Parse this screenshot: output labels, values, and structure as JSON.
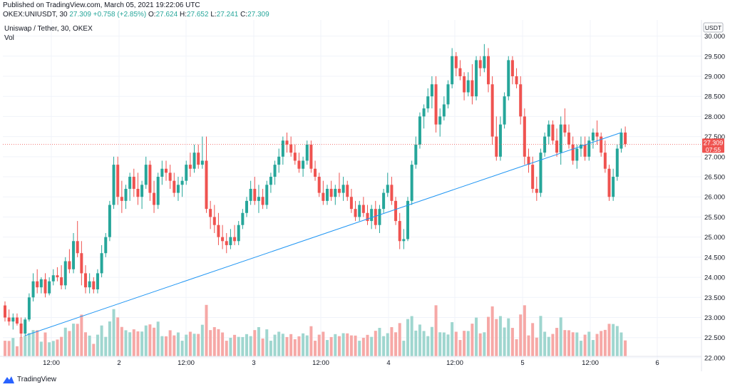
{
  "header": {
    "published": "Published on TradingView.com, March 05, 2021 19:22:06 UTC",
    "symbol_label": "OKEX:UNIUSDT, 30",
    "change": "+0.758 (+2.85%)",
    "o_label": "O:",
    "o_value": "27.624",
    "h_label": "H:",
    "h_value": "27.652",
    "l_label": "L:",
    "l_value": "27.241",
    "c_label": "C:",
    "c_value": "27.309",
    "last": "27.309"
  },
  "legend": {
    "title": "Uniswap / Tether, 30, OKEX",
    "vol": "Vol"
  },
  "footer": {
    "brand": "TradingView"
  },
  "colors": {
    "up": "#26a69a",
    "down": "#ef5350",
    "trendline": "#2196f3",
    "vol_up": "#9fd6cf",
    "vol_down": "#f6a8a6",
    "price_badge": "#ef5350"
  },
  "chart_data": {
    "type": "candlestick",
    "currency_label": "USDT",
    "ylim": [
      21.75,
      30.4
    ],
    "y_ticks": [
      "22.000",
      "22.500",
      "23.000",
      "23.500",
      "24.000",
      "24.500",
      "25.000",
      "25.500",
      "26.000",
      "26.500",
      "27.000",
      "27.500",
      "28.000",
      "28.500",
      "29.000",
      "29.500",
      "30.000"
    ],
    "x_ticks": [
      "12:00",
      "2",
      "12:00",
      "3",
      "12:00",
      "4",
      "12:00",
      "5",
      "12:00",
      "6"
    ],
    "last_price": "27.309",
    "countdown": "07:55",
    "trendline": {
      "from": {
        "x": "Mar 1 ~03:00",
        "y": 22.55
      },
      "to": {
        "x": "Mar 5 ~18:30",
        "y": 27.6
      }
    },
    "candles": [
      [
        23.3,
        23.4,
        22.9,
        23.0
      ],
      [
        23.0,
        23.2,
        22.8,
        22.9
      ],
      [
        22.9,
        23.1,
        22.7,
        23.0
      ],
      [
        23.0,
        23.1,
        22.8,
        22.85
      ],
      [
        22.85,
        23.0,
        22.5,
        22.6
      ],
      [
        22.6,
        23.0,
        22.55,
        22.95
      ],
      [
        22.95,
        23.6,
        22.9,
        23.5
      ],
      [
        23.5,
        24.1,
        23.4,
        23.9
      ],
      [
        23.9,
        24.2,
        23.6,
        23.75
      ],
      [
        23.75,
        24.0,
        23.6,
        23.95
      ],
      [
        23.95,
        24.1,
        23.5,
        23.6
      ],
      [
        23.6,
        24.0,
        23.55,
        23.9
      ],
      [
        23.9,
        24.2,
        23.8,
        24.05
      ],
      [
        24.05,
        24.25,
        23.9,
        24.0
      ],
      [
        24.0,
        24.3,
        23.7,
        23.8
      ],
      [
        23.8,
        24.5,
        23.7,
        24.4
      ],
      [
        24.4,
        24.7,
        24.1,
        24.2
      ],
      [
        24.2,
        25.1,
        24.1,
        24.9
      ],
      [
        24.9,
        25.4,
        24.5,
        24.6
      ],
      [
        24.6,
        24.9,
        23.8,
        24.1
      ],
      [
        24.1,
        24.3,
        23.6,
        23.75
      ],
      [
        23.75,
        24.1,
        23.6,
        23.9
      ],
      [
        23.9,
        24.0,
        23.6,
        23.7
      ],
      [
        23.7,
        24.2,
        23.6,
        24.1
      ],
      [
        24.1,
        24.8,
        24.0,
        24.6
      ],
      [
        24.6,
        25.1,
        24.5,
        25.0
      ],
      [
        25.0,
        25.9,
        24.9,
        25.8
      ],
      [
        25.8,
        27.0,
        25.7,
        26.8
      ],
      [
        26.8,
        27.0,
        25.8,
        26.0
      ],
      [
        26.0,
        26.4,
        25.6,
        25.9
      ],
      [
        25.9,
        26.3,
        25.7,
        26.2
      ],
      [
        26.2,
        26.6,
        25.9,
        26.5
      ],
      [
        26.5,
        26.7,
        26.0,
        26.2
      ],
      [
        26.2,
        26.6,
        25.8,
        26.0
      ],
      [
        26.0,
        26.4,
        25.7,
        26.3
      ],
      [
        26.3,
        27.0,
        26.2,
        26.8
      ],
      [
        26.8,
        26.9,
        25.9,
        26.1
      ],
      [
        26.1,
        26.4,
        25.6,
        25.8
      ],
      [
        25.8,
        26.6,
        25.7,
        26.5
      ],
      [
        26.5,
        26.9,
        26.3,
        26.7
      ],
      [
        26.7,
        26.9,
        26.4,
        26.6
      ],
      [
        26.6,
        26.8,
        26.2,
        26.4
      ],
      [
        26.4,
        26.6,
        26.0,
        26.1
      ],
      [
        26.1,
        26.5,
        25.9,
        26.3
      ],
      [
        26.3,
        26.5,
        26.0,
        26.4
      ],
      [
        26.4,
        26.9,
        26.3,
        26.8
      ],
      [
        26.8,
        27.1,
        26.5,
        26.7
      ],
      [
        26.7,
        27.3,
        26.6,
        27.1
      ],
      [
        27.1,
        27.3,
        26.7,
        26.8
      ],
      [
        26.8,
        27.5,
        26.7,
        26.9
      ],
      [
        26.9,
        27.5,
        25.6,
        25.7
      ],
      [
        25.7,
        25.9,
        25.2,
        25.5
      ],
      [
        25.5,
        25.8,
        25.1,
        25.3
      ],
      [
        25.3,
        25.6,
        24.8,
        25.0
      ],
      [
        25.0,
        25.3,
        24.7,
        24.9
      ],
      [
        24.9,
        25.1,
        24.6,
        24.8
      ],
      [
        24.8,
        25.2,
        24.7,
        25.0
      ],
      [
        25.0,
        25.3,
        24.8,
        24.9
      ],
      [
        24.9,
        25.4,
        24.8,
        25.3
      ],
      [
        25.3,
        25.7,
        25.2,
        25.6
      ],
      [
        25.6,
        26.0,
        25.5,
        25.9
      ],
      [
        25.9,
        26.4,
        25.8,
        26.2
      ],
      [
        26.2,
        26.5,
        25.8,
        25.9
      ],
      [
        25.9,
        26.3,
        25.6,
        26.0
      ],
      [
        26.0,
        26.2,
        25.7,
        25.8
      ],
      [
        25.8,
        26.4,
        25.7,
        26.3
      ],
      [
        26.3,
        26.6,
        26.1,
        26.5
      ],
      [
        26.5,
        26.9,
        26.3,
        26.8
      ],
      [
        26.8,
        27.2,
        26.6,
        27.0
      ],
      [
        27.0,
        27.5,
        26.8,
        27.4
      ],
      [
        27.4,
        27.6,
        27.1,
        27.3
      ],
      [
        27.3,
        27.5,
        27.0,
        27.1
      ],
      [
        27.1,
        27.3,
        26.8,
        26.9
      ],
      [
        26.9,
        27.1,
        26.6,
        26.7
      ],
      [
        26.7,
        27.0,
        26.5,
        26.9
      ],
      [
        26.9,
        27.4,
        26.8,
        27.3
      ],
      [
        27.3,
        27.4,
        26.6,
        26.7
      ],
      [
        26.7,
        26.9,
        26.4,
        26.5
      ],
      [
        26.5,
        26.6,
        26.0,
        26.1
      ],
      [
        26.1,
        26.4,
        25.8,
        25.9
      ],
      [
        25.9,
        26.3,
        25.8,
        26.2
      ],
      [
        26.2,
        26.4,
        25.9,
        26.0
      ],
      [
        26.0,
        26.3,
        25.8,
        26.2
      ],
      [
        26.2,
        26.6,
        26.0,
        26.1
      ],
      [
        26.1,
        26.5,
        25.9,
        26.3
      ],
      [
        26.3,
        26.4,
        25.9,
        26.0
      ],
      [
        26.0,
        26.2,
        25.6,
        25.7
      ],
      [
        25.7,
        25.9,
        25.4,
        25.5
      ],
      [
        25.5,
        25.9,
        25.4,
        25.8
      ],
      [
        25.8,
        26.0,
        25.5,
        25.6
      ],
      [
        25.6,
        25.8,
        25.3,
        25.4
      ],
      [
        25.4,
        25.8,
        25.2,
        25.7
      ],
      [
        25.7,
        25.9,
        25.2,
        25.3
      ],
      [
        25.3,
        25.8,
        25.1,
        25.7
      ],
      [
        25.7,
        26.2,
        25.6,
        26.1
      ],
      [
        26.1,
        26.6,
        26.0,
        26.3
      ],
      [
        26.3,
        26.5,
        25.8,
        25.9
      ],
      [
        25.9,
        26.0,
        25.3,
        25.4
      ],
      [
        25.4,
        25.6,
        24.7,
        24.9
      ],
      [
        24.9,
        25.2,
        24.7,
        24.95
      ],
      [
        24.95,
        26.0,
        24.9,
        25.9
      ],
      [
        25.9,
        26.9,
        25.8,
        26.8
      ],
      [
        26.8,
        27.5,
        26.7,
        27.3
      ],
      [
        27.3,
        28.1,
        27.2,
        28.0
      ],
      [
        28.0,
        28.3,
        27.7,
        28.2
      ],
      [
        28.2,
        28.7,
        28.1,
        28.5
      ],
      [
        28.5,
        29.0,
        28.2,
        28.8
      ],
      [
        28.8,
        29.0,
        27.6,
        27.8
      ],
      [
        27.8,
        28.2,
        27.5,
        28.0
      ],
      [
        28.0,
        28.5,
        27.9,
        28.3
      ],
      [
        28.3,
        28.9,
        28.2,
        28.8
      ],
      [
        28.8,
        29.7,
        28.7,
        29.5
      ],
      [
        29.5,
        29.6,
        29.0,
        29.2
      ],
      [
        29.2,
        29.4,
        28.9,
        29.0
      ],
      [
        29.0,
        29.1,
        28.4,
        28.6
      ],
      [
        28.6,
        29.1,
        28.5,
        28.9
      ],
      [
        28.9,
        29.3,
        28.3,
        28.5
      ],
      [
        28.5,
        29.5,
        28.4,
        29.4
      ],
      [
        29.4,
        29.5,
        29.0,
        29.2
      ],
      [
        29.2,
        29.8,
        29.1,
        29.5
      ],
      [
        29.5,
        29.7,
        28.6,
        28.8
      ],
      [
        28.8,
        29.0,
        27.3,
        27.5
      ],
      [
        27.5,
        28.0,
        26.9,
        27.0
      ],
      [
        27.0,
        28.0,
        26.9,
        27.8
      ],
      [
        27.8,
        28.6,
        27.7,
        28.5
      ],
      [
        28.5,
        29.5,
        28.4,
        29.4
      ],
      [
        29.4,
        29.5,
        28.8,
        29.0
      ],
      [
        29.0,
        29.2,
        28.7,
        28.8
      ],
      [
        28.8,
        29.0,
        27.8,
        28.0
      ],
      [
        28.0,
        28.2,
        26.8,
        27.0
      ],
      [
        27.0,
        27.2,
        26.6,
        26.8
      ],
      [
        26.8,
        27.0,
        26.1,
        26.2
      ],
      [
        26.2,
        26.5,
        25.9,
        26.1
      ],
      [
        26.1,
        27.2,
        26.0,
        27.1
      ],
      [
        27.1,
        27.6,
        27.0,
        27.5
      ],
      [
        27.5,
        27.9,
        27.3,
        27.8
      ],
      [
        27.8,
        27.9,
        27.3,
        27.4
      ],
      [
        27.4,
        27.7,
        27.0,
        27.1
      ],
      [
        27.1,
        28.0,
        26.8,
        27.8
      ],
      [
        27.8,
        28.2,
        27.5,
        27.6
      ],
      [
        27.6,
        27.8,
        27.2,
        27.3
      ],
      [
        27.3,
        27.5,
        26.8,
        26.9
      ],
      [
        26.9,
        27.3,
        26.7,
        27.2
      ],
      [
        27.2,
        27.5,
        27.0,
        27.3
      ],
      [
        27.3,
        27.5,
        26.9,
        27.0
      ],
      [
        27.0,
        27.5,
        26.9,
        27.4
      ],
      [
        27.4,
        27.7,
        27.2,
        27.6
      ],
      [
        27.6,
        27.9,
        27.3,
        27.5
      ],
      [
        27.5,
        27.6,
        27.0,
        27.1
      ],
      [
        27.1,
        27.4,
        26.6,
        26.7
      ],
      [
        26.7,
        26.8,
        25.9,
        26.0
      ],
      [
        26.0,
        26.7,
        25.9,
        26.5
      ],
      [
        26.5,
        27.3,
        26.4,
        27.2
      ],
      [
        27.2,
        27.7,
        27.1,
        27.6
      ],
      [
        27.6,
        27.75,
        27.24,
        27.31
      ]
    ],
    "volume_ylim": [
      0,
      500
    ]
  }
}
